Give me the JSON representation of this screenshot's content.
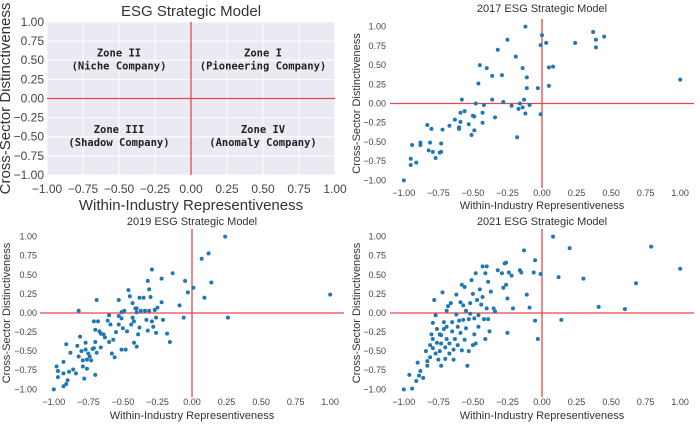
{
  "chart_data": [
    {
      "type": "scatter",
      "title": "ESG Strategic Model",
      "xlabel": "Within-Industry Representiveness",
      "ylabel": "Cross-Sector Distinctiveness",
      "xlim": [
        -1,
        1
      ],
      "ylim": [
        -1,
        1
      ],
      "xticks": [
        "-1.00",
        "-0.75",
        "-0.50",
        "-0.25",
        "0.00",
        "0.25",
        "0.50",
        "0.75",
        "1.00"
      ],
      "yticks": [
        "-1.00",
        "-0.75",
        "-0.50",
        "-0.25",
        "0.00",
        "0.25",
        "0.50",
        "0.75",
        "1.00"
      ],
      "grid": true,
      "background": "#eaeaf2",
      "reference_lines": {
        "x": 0,
        "y": 0,
        "color": "#e8474a"
      },
      "annotations": [
        {
          "x": 0.5,
          "y": 0.5,
          "lines": [
            "Zone I",
            "(Pioneering Company)"
          ]
        },
        {
          "x": -0.5,
          "y": 0.5,
          "lines": [
            "Zone II",
            "(Niche Company)"
          ]
        },
        {
          "x": -0.5,
          "y": -0.5,
          "lines": [
            "Zone III",
            "(Shadow Company)"
          ]
        },
        {
          "x": 0.5,
          "y": -0.5,
          "lines": [
            "Zone IV",
            "(Anomaly Company)"
          ]
        }
      ],
      "points": []
    },
    {
      "type": "scatter",
      "title": "2017 ESG Strategic Model",
      "xlabel": "Within-Industry Representiveness",
      "ylabel": "Cross-Sector Distinctiveness",
      "xlim": [
        -1.1,
        1.1
      ],
      "ylim": [
        -1.1,
        1.1
      ],
      "xticks": [
        "-1.00",
        "-0.75",
        "-0.50",
        "-0.25",
        "0.00",
        "0.25",
        "0.50",
        "0.75",
        "1.00"
      ],
      "yticks": [
        "-1.00",
        "-0.75",
        "-0.50",
        "-0.25",
        "0.00",
        "0.25",
        "0.50",
        "0.75",
        "1.00"
      ],
      "grid": false,
      "marker_color": "#1f77b4",
      "reference_lines": {
        "x": 0,
        "y": 0,
        "color": "#e8474a"
      },
      "points": [
        [
          -1,
          -1
        ],
        [
          -0.95,
          -0.72
        ],
        [
          -0.95,
          -0.8
        ],
        [
          -0.91,
          -0.77
        ],
        [
          -0.94,
          -0.54
        ],
        [
          -0.88,
          -0.51
        ],
        [
          -0.88,
          -0.54
        ],
        [
          -0.83,
          -0.28
        ],
        [
          -0.82,
          -0.61
        ],
        [
          -0.81,
          -0.51
        ],
        [
          -0.8,
          -0.33
        ],
        [
          -0.79,
          -0.63
        ],
        [
          -0.77,
          -0.71
        ],
        [
          -0.74,
          -0.64
        ],
        [
          -0.73,
          -0.63
        ],
        [
          -0.73,
          -0.52
        ],
        [
          -0.72,
          -0.34
        ],
        [
          -0.67,
          -0.29
        ],
        [
          -0.63,
          -0.21
        ],
        [
          -0.6,
          -0.31
        ],
        [
          -0.6,
          -0.33
        ],
        [
          -0.59,
          -0.12
        ],
        [
          -0.59,
          -0.24
        ],
        [
          -0.58,
          0.05
        ],
        [
          -0.56,
          -0.1
        ],
        [
          -0.53,
          -0.27
        ],
        [
          -0.51,
          -0.41
        ],
        [
          -0.5,
          -0.16
        ],
        [
          -0.49,
          -0.17
        ],
        [
          -0.49,
          -0.35
        ],
        [
          -0.48,
          0
        ],
        [
          -0.46,
          0.26
        ],
        [
          -0.45,
          0.5
        ],
        [
          -0.43,
          -0.12
        ],
        [
          -0.43,
          -0.25
        ],
        [
          -0.42,
          -0.02
        ],
        [
          -0.4,
          0.46
        ],
        [
          -0.36,
          0.36
        ],
        [
          -0.36,
          0.05
        ],
        [
          -0.34,
          -0.18
        ],
        [
          -0.32,
          0.7
        ],
        [
          -0.29,
          0.37
        ],
        [
          -0.28,
          0.02
        ],
        [
          -0.25,
          0.83
        ],
        [
          -0.22,
          -0.03
        ],
        [
          -0.19,
          0.61
        ],
        [
          -0.18,
          -0.44
        ],
        [
          -0.17,
          -0.07
        ],
        [
          -0.16,
          0
        ],
        [
          -0.14,
          -0.05
        ],
        [
          -0.14,
          0.46
        ],
        [
          -0.13,
          0.05
        ],
        [
          -0.12,
          1
        ],
        [
          -0.12,
          -0.13
        ],
        [
          -0.11,
          0.34
        ],
        [
          -0.11,
          0.2
        ],
        [
          -0.09,
          -0.02
        ],
        [
          -0.03,
          0.2
        ],
        [
          -0.01,
          -0.14
        ],
        [
          -0.01,
          0.76
        ],
        [
          0,
          0.89
        ],
        [
          0.03,
          0.79
        ],
        [
          0.05,
          0.47
        ],
        [
          0.05,
          0.23
        ],
        [
          0.08,
          0.48
        ],
        [
          0.24,
          0.79
        ],
        [
          0.37,
          0.93
        ],
        [
          0.39,
          0.83
        ],
        [
          0.39,
          0.73
        ],
        [
          0.45,
          0.87
        ],
        [
          1,
          0.31
        ]
      ]
    },
    {
      "type": "scatter",
      "title": "2019 ESG Strategic Model",
      "xlabel": "Within-Industry Representiveness",
      "ylabel": "Cross-Sector Distinctiveness",
      "xlim": [
        -1.1,
        1.1
      ],
      "ylim": [
        -1.1,
        1.1
      ],
      "xticks": [
        "-1.00",
        "-0.75",
        "-0.50",
        "-0.25",
        "0.00",
        "0.25",
        "0.50",
        "0.75",
        "1.00"
      ],
      "yticks": [
        "-1.00",
        "-0.75",
        "-0.50",
        "-0.25",
        "0.00",
        "0.25",
        "0.50",
        "0.75",
        "1.00"
      ],
      "grid": false,
      "marker_color": "#1f77b4",
      "reference_lines": {
        "x": 0,
        "y": 0,
        "color": "#e8474a"
      },
      "points": [
        [
          -1,
          -1
        ],
        [
          -0.98,
          -0.7
        ],
        [
          -0.97,
          -0.76
        ],
        [
          -0.97,
          -0.84
        ],
        [
          -0.93,
          -0.64
        ],
        [
          -0.93,
          -0.79
        ],
        [
          -0.93,
          -0.96
        ],
        [
          -0.91,
          -0.93
        ],
        [
          -0.91,
          -0.41
        ],
        [
          -0.9,
          -0.88
        ],
        [
          -0.89,
          -0.77
        ],
        [
          -0.88,
          -0.52
        ],
        [
          -0.86,
          -0.74
        ],
        [
          -0.84,
          -0.79
        ],
        [
          -0.83,
          -0.43
        ],
        [
          -0.82,
          -0.57
        ],
        [
          -0.82,
          0.03
        ],
        [
          -0.81,
          -0.31
        ],
        [
          -0.8,
          -0.5
        ],
        [
          -0.79,
          -0.62
        ],
        [
          -0.79,
          -0.7
        ],
        [
          -0.78,
          -0.86
        ],
        [
          -0.77,
          -0.39
        ],
        [
          -0.77,
          -0.48
        ],
        [
          -0.76,
          -0.61
        ],
        [
          -0.76,
          -0.73
        ],
        [
          -0.75,
          -0.53
        ],
        [
          -0.74,
          -0.57
        ],
        [
          -0.73,
          -0.62
        ],
        [
          -0.72,
          -0.47
        ],
        [
          -0.71,
          -0.46
        ],
        [
          -0.71,
          -0.11
        ],
        [
          -0.7,
          -0.22
        ],
        [
          -0.7,
          -0.81
        ],
        [
          -0.7,
          -0.38
        ],
        [
          -0.69,
          0.17
        ],
        [
          -0.69,
          -0.52
        ],
        [
          -0.68,
          -0.11
        ],
        [
          -0.67,
          -0.24
        ],
        [
          -0.66,
          -0.45
        ],
        [
          -0.66,
          -0.27
        ],
        [
          -0.64,
          -0.28
        ],
        [
          -0.63,
          -0.32
        ],
        [
          -0.61,
          -0.1
        ],
        [
          -0.6,
          -0.03
        ],
        [
          -0.6,
          -0.38
        ],
        [
          -0.59,
          -0.15
        ],
        [
          -0.58,
          -0.53
        ],
        [
          -0.57,
          -0.35
        ],
        [
          -0.56,
          -0.58
        ],
        [
          -0.55,
          -0.25
        ],
        [
          -0.53,
          -0.04
        ],
        [
          -0.53,
          0.17
        ],
        [
          -0.53,
          -0.15
        ],
        [
          -0.51,
          -0.07
        ],
        [
          -0.51,
          0.01
        ],
        [
          -0.5,
          -0.2
        ],
        [
          -0.51,
          -0.48
        ],
        [
          -0.49,
          0.03
        ],
        [
          -0.48,
          -0.48
        ],
        [
          -0.47,
          -0.24
        ],
        [
          -0.46,
          0.3
        ],
        [
          -0.45,
          0.22
        ],
        [
          -0.44,
          -0.15
        ],
        [
          -0.43,
          0.13
        ],
        [
          -0.43,
          -0.06
        ],
        [
          -0.42,
          -0.39
        ],
        [
          -0.42,
          -0.11
        ],
        [
          -0.41,
          0.06
        ],
        [
          -0.4,
          0.01
        ],
        [
          -0.4,
          0.06
        ],
        [
          -0.4,
          -0.44
        ],
        [
          -0.39,
          -0.28
        ],
        [
          -0.38,
          -0.19
        ],
        [
          -0.38,
          0.2
        ],
        [
          -0.37,
          0.03
        ],
        [
          -0.35,
          0.2
        ],
        [
          -0.34,
          0.03
        ],
        [
          -0.33,
          -0.09
        ],
        [
          -0.32,
          -0.23
        ],
        [
          -0.32,
          0.42
        ],
        [
          -0.31,
          0.31
        ],
        [
          -0.31,
          0.03
        ],
        [
          -0.3,
          0.21
        ],
        [
          -0.29,
          0.57
        ],
        [
          -0.29,
          -0.11
        ],
        [
          -0.28,
          -0.18
        ],
        [
          -0.27,
          0.04
        ],
        [
          -0.26,
          -0.06
        ],
        [
          -0.26,
          -0.26
        ],
        [
          -0.25,
          0.07
        ],
        [
          -0.22,
          0.45
        ],
        [
          -0.22,
          0.14
        ],
        [
          -0.21,
          -0.09
        ],
        [
          -0.18,
          -0.27
        ],
        [
          -0.16,
          -0.38
        ],
        [
          -0.14,
          0.52
        ],
        [
          -0.09,
          0.1
        ],
        [
          -0.06,
          -0.06
        ],
        [
          -0.05,
          0.42
        ],
        [
          -0.03,
          0.27
        ],
        [
          0.01,
          0.33
        ],
        [
          0.07,
          0.71
        ],
        [
          0.09,
          0.2
        ],
        [
          0.12,
          0.78
        ],
        [
          0.14,
          0.4
        ],
        [
          0.24,
          1
        ],
        [
          0.26,
          -0.06
        ],
        [
          1,
          0.24
        ]
      ]
    },
    {
      "type": "scatter",
      "title": "2021 ESG Strategic Model",
      "xlabel": "Within-Industry Representiveness",
      "ylabel": "Cross-Sector Distinctiveness",
      "xlim": [
        -1.1,
        1.1
      ],
      "ylim": [
        -1.1,
        1.1
      ],
      "xticks": [
        "-1.00",
        "-0.75",
        "-0.50",
        "-0.25",
        "0.00",
        "0.25",
        "0.50",
        "0.75",
        "1.00"
      ],
      "yticks": [
        "-1.00",
        "-0.75",
        "-0.50",
        "-0.25",
        "0.00",
        "0.25",
        "0.50",
        "0.75",
        "1.00"
      ],
      "grid": false,
      "marker_color": "#1f77b4",
      "reference_lines": {
        "x": 0,
        "y": 0,
        "color": "#e8474a"
      },
      "points": [
        [
          -1,
          -1
        ],
        [
          -0.96,
          -0.81
        ],
        [
          -0.94,
          -0.99
        ],
        [
          -0.91,
          -0.89
        ],
        [
          -0.9,
          -0.65
        ],
        [
          -0.89,
          -0.82
        ],
        [
          -0.88,
          -0.76
        ],
        [
          -0.86,
          -0.85
        ],
        [
          -0.84,
          -0.5
        ],
        [
          -0.83,
          -0.63
        ],
        [
          -0.83,
          -0.69
        ],
        [
          -0.81,
          -0.42
        ],
        [
          -0.81,
          -0.58
        ],
        [
          -0.8,
          -0.28
        ],
        [
          -0.79,
          -0.13
        ],
        [
          -0.79,
          -0.46
        ],
        [
          -0.79,
          -0.34
        ],
        [
          -0.78,
          0.17
        ],
        [
          -0.77,
          -0.53
        ],
        [
          -0.77,
          -0.03
        ],
        [
          -0.76,
          -0.21
        ],
        [
          -0.76,
          -0.39
        ],
        [
          -0.75,
          -0.61
        ],
        [
          -0.74,
          -0.28
        ],
        [
          -0.74,
          -0.5
        ],
        [
          -0.73,
          -0.4
        ],
        [
          -0.73,
          -0.29
        ],
        [
          -0.73,
          -0.69
        ],
        [
          -0.72,
          0.27
        ],
        [
          -0.71,
          -0.12
        ],
        [
          -0.71,
          -0.21
        ],
        [
          -0.7,
          -0.6
        ],
        [
          -0.7,
          -0.45
        ],
        [
          -0.69,
          -0.34
        ],
        [
          -0.69,
          0.03
        ],
        [
          -0.69,
          -0.18
        ],
        [
          -0.68,
          0.09
        ],
        [
          -0.67,
          -0.4
        ],
        [
          -0.67,
          -0.53
        ],
        [
          -0.66,
          0.13
        ],
        [
          -0.65,
          -0.24
        ],
        [
          -0.65,
          -0.12
        ],
        [
          -0.64,
          -0.48
        ],
        [
          -0.64,
          -0.61
        ],
        [
          -0.63,
          -0.34
        ],
        [
          -0.62,
          0.24
        ],
        [
          -0.62,
          -0.02
        ],
        [
          -0.61,
          -0.18
        ],
        [
          -0.61,
          -0.42
        ],
        [
          -0.6,
          -0.1
        ],
        [
          -0.59,
          -0.26
        ],
        [
          -0.59,
          0.14
        ],
        [
          -0.58,
          0.37
        ],
        [
          -0.58,
          -0.49
        ],
        [
          -0.57,
          0.1
        ],
        [
          -0.57,
          -0.09
        ],
        [
          -0.56,
          0.34
        ],
        [
          -0.56,
          -0.35
        ],
        [
          -0.55,
          -0.2
        ],
        [
          -0.55,
          0.03
        ],
        [
          -0.54,
          -0.69
        ],
        [
          -0.53,
          -0.08
        ],
        [
          -0.53,
          -0.5
        ],
        [
          -0.52,
          0.13
        ],
        [
          -0.52,
          -0.01
        ],
        [
          -0.51,
          0.43
        ],
        [
          -0.5,
          0.25
        ],
        [
          -0.5,
          -0.42
        ],
        [
          -0.49,
          -0.07
        ],
        [
          -0.49,
          -0.28
        ],
        [
          -0.48,
          0.52
        ],
        [
          -0.48,
          -0.4
        ],
        [
          -0.47,
          0.17
        ],
        [
          -0.46,
          -0.03
        ],
        [
          -0.46,
          -0.18
        ],
        [
          -0.45,
          0.31
        ],
        [
          -0.44,
          0.11
        ],
        [
          -0.43,
          0.61
        ],
        [
          -0.43,
          0.21
        ],
        [
          -0.42,
          -0.08
        ],
        [
          -0.41,
          0.52
        ],
        [
          -0.41,
          -0.34
        ],
        [
          -0.4,
          0.06
        ],
        [
          -0.4,
          0.61
        ],
        [
          -0.39,
          0.41
        ],
        [
          -0.39,
          -0.08
        ],
        [
          -0.38,
          -0.24
        ],
        [
          -0.37,
          0.28
        ],
        [
          -0.35,
          0.06
        ],
        [
          -0.34,
          0.02
        ],
        [
          -0.32,
          0.56
        ],
        [
          -0.29,
          0.52
        ],
        [
          -0.28,
          0.33
        ],
        [
          -0.27,
          0.65
        ],
        [
          -0.26,
          0.66
        ],
        [
          -0.26,
          0.37
        ],
        [
          -0.25,
          0.19
        ],
        [
          -0.25,
          -0.26
        ],
        [
          -0.24,
          0.53
        ],
        [
          -0.22,
          0.49
        ],
        [
          -0.21,
          0.06
        ],
        [
          -0.16,
          0.56
        ],
        [
          -0.15,
          0.53
        ],
        [
          -0.13,
          0.82
        ],
        [
          -0.11,
          0.24
        ],
        [
          -0.09,
          0.07
        ],
        [
          -0.06,
          0.53
        ],
        [
          -0.05,
          -0.1
        ],
        [
          -0.05,
          0.69
        ],
        [
          -0.03,
          -0.34
        ],
        [
          -0.01,
          0.51
        ],
        [
          0.08,
          1
        ],
        [
          0.12,
          0.47
        ],
        [
          0.14,
          -0.09
        ],
        [
          0.2,
          0.85
        ],
        [
          0.3,
          0.45
        ],
        [
          0.41,
          0.08
        ],
        [
          0.6,
          0.05
        ],
        [
          0.68,
          0.39
        ],
        [
          0.79,
          0.87
        ],
        [
          1,
          0.58
        ]
      ]
    }
  ]
}
